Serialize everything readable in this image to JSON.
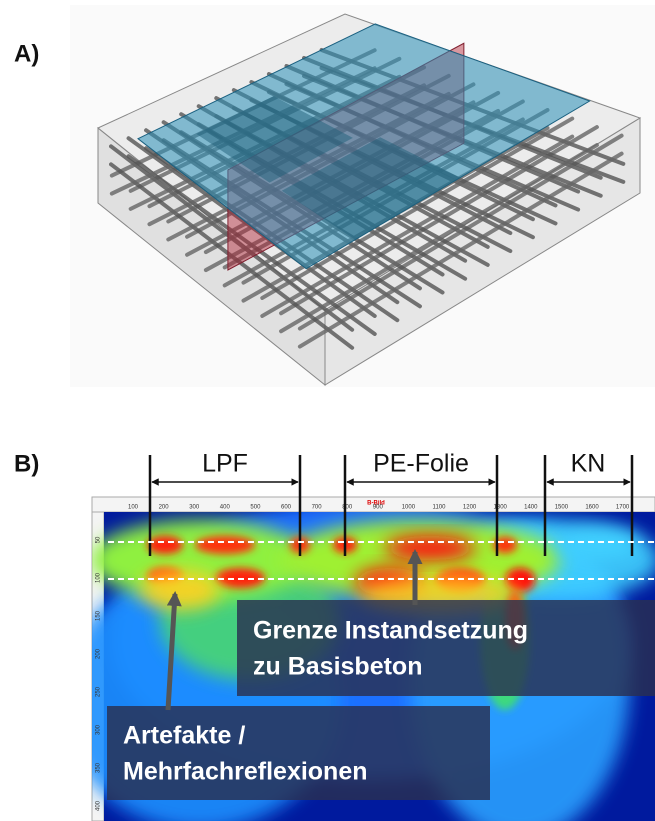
{
  "panels": [
    {
      "label": "A)"
    },
    {
      "label": "B)",
      "sections": [
        "LPF",
        "PE-Folie",
        "KN"
      ],
      "scan_title": "B-Bild",
      "x_ticks": [
        "100",
        "200",
        "300",
        "400",
        "500",
        "600",
        "700",
        "800",
        "900",
        "1000",
        "1100",
        "1200",
        "1300",
        "1400",
        "1500",
        "1600",
        "1700"
      ],
      "y_ticks": [
        "50",
        "100",
        "150",
        "200",
        "250",
        "300",
        "350",
        "400"
      ],
      "annotations": [
        {
          "lines": [
            "Grenze Instandsetzung",
            "zu Basisbeton"
          ]
        },
        {
          "lines": [
            "Artefakte /",
            "Mehrfachreflexionen"
          ]
        }
      ]
    }
  ]
}
